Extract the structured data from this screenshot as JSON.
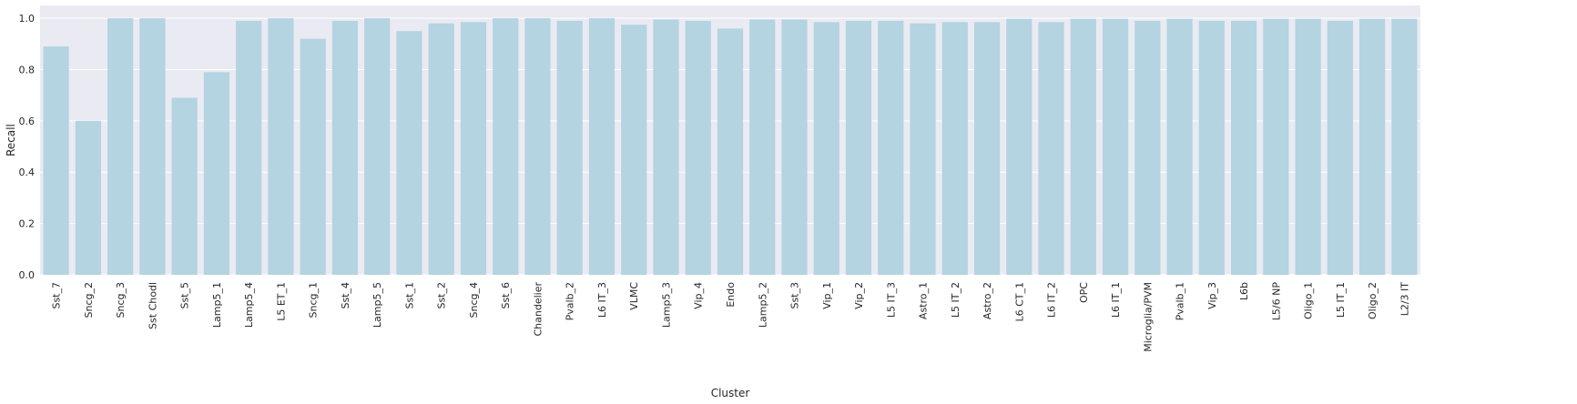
{
  "chart_data": {
    "type": "bar",
    "title": "",
    "xlabel": "Cluster",
    "ylabel": "Recall",
    "ylim": [
      0,
      1.05
    ],
    "yticks": [
      "0.0",
      "0.2",
      "0.4",
      "0.6",
      "0.8",
      "1.0"
    ],
    "grid": true,
    "legend": "none",
    "colors": {
      "bar": "#b3d4e0",
      "background": "#eaeaf2",
      "grid": "#ffffff"
    },
    "categories": [
      "Sst_7",
      "Sncg_2",
      "Sncg_3",
      "Sst Chodl",
      "Sst_5",
      "Lamp5_1",
      "Lamp5_4",
      "L5 ET_1",
      "Sncg_1",
      "Sst_4",
      "Lamp5_5",
      "Sst_1",
      "Sst_2",
      "Sncg_4",
      "Sst_6",
      "Chandelier",
      "Pvalb_2",
      "L6 IT_3",
      "VLMC",
      "Lamp5_3",
      "Vip_4",
      "Endo",
      "Lamp5_2",
      "Sst_3",
      "Vip_1",
      "Vip_2",
      "L5 IT_3",
      "Astro_1",
      "L5 IT_2",
      "Astro_2",
      "L6 CT_1",
      "L6 IT_2",
      "OPC",
      "L6 IT_1",
      "Microglia/PVM",
      "Pvalb_1",
      "Vip_3",
      "L6b",
      "L5/6 NP",
      "Oligo_1",
      "L5 IT_1",
      "Oligo_2",
      "L2/3 IT"
    ],
    "values": [
      0.89,
      0.6,
      1.0,
      1.0,
      0.69,
      0.79,
      0.99,
      1.0,
      0.92,
      0.99,
      1.0,
      0.95,
      0.98,
      0.985,
      1.0,
      1.0,
      0.99,
      1.0,
      0.975,
      0.995,
      0.99,
      0.96,
      0.995,
      0.995,
      0.985,
      0.99,
      0.99,
      0.98,
      0.985,
      0.985,
      0.998,
      0.985,
      0.998,
      0.998,
      0.99,
      0.998,
      0.99,
      0.99,
      0.998,
      0.998,
      0.99,
      0.998,
      0.998
    ]
  }
}
